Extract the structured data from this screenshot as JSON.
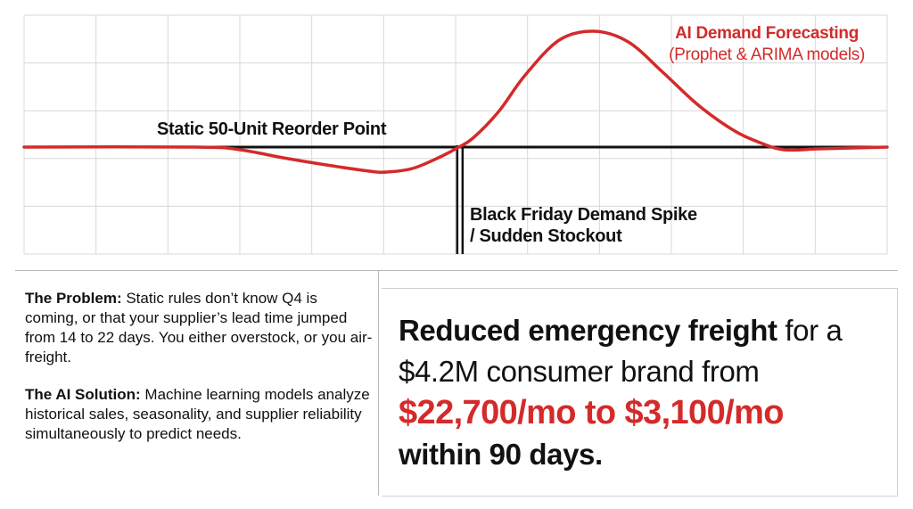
{
  "chart_data": {
    "type": "line",
    "series": [
      {
        "name": "AI Demand Forecasting",
        "color": "#d42a2a",
        "points": [
          [
            0,
            0
          ],
          [
            20,
            0
          ],
          [
            25,
            -3
          ],
          [
            30,
            -12
          ],
          [
            35,
            -20
          ],
          [
            40,
            -27
          ],
          [
            42,
            -28
          ],
          [
            45,
            -24
          ],
          [
            48,
            -12
          ],
          [
            50,
            -2
          ],
          [
            52,
            10
          ],
          [
            55,
            40
          ],
          [
            58,
            80
          ],
          [
            62,
            120
          ],
          [
            66,
            130
          ],
          [
            70,
            118
          ],
          [
            74,
            84
          ],
          [
            78,
            48
          ],
          [
            82,
            20
          ],
          [
            85,
            6
          ],
          [
            88,
            -3
          ],
          [
            92,
            -2
          ],
          [
            96,
            -1
          ],
          [
            100,
            0
          ]
        ]
      }
    ],
    "baseline": 0,
    "spike_x": 50.5,
    "xlim": [
      0,
      100
    ],
    "ylim": [
      -120,
      150
    ],
    "grid": true,
    "annotations": {
      "static_rule": "Static 50-Unit Reorder Point",
      "spike_line1": "Black Friday Demand Spike",
      "spike_line2": "/ Sudden Stockout",
      "ai_title": "AI Demand Forecasting",
      "ai_subtitle": "(Prophet & ARIMA models)"
    }
  },
  "left_panel": {
    "problem_label": "The Problem:",
    "problem_text": " Static rules don’t know Q4 is coming, or that your supplier’s lead time jumped from 14 to 22 days. You either overstock, or you air-freight.",
    "solution_label": "The AI Solution:",
    "solution_text": " Machine learning models analyze historical sales, seasonality, and supplier reliability simultaneously to predict needs."
  },
  "result": {
    "bold_lead": "Reduced emergency freight",
    "text_1": " for a $4.2M consumer brand from ",
    "highlight": "$22,700/mo to $3,100/mo",
    "text_2": "within 90 days."
  },
  "colors": {
    "accent": "#d42a2a",
    "grid": "#d8d8d8",
    "ink": "#111111"
  }
}
